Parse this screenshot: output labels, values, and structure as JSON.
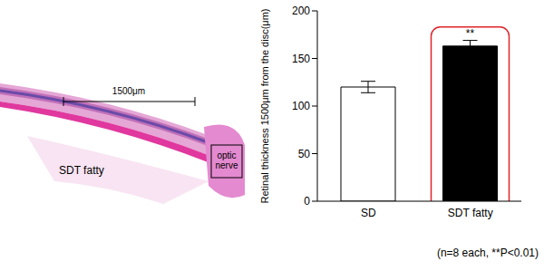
{
  "chart_data": {
    "type": "bar",
    "categories": [
      "SD",
      "SDT fatty"
    ],
    "values": [
      120,
      163
    ],
    "errors": [
      6,
      6
    ],
    "colors": [
      "#ffffff",
      "#000000"
    ],
    "y_label": "Retinal thickness 1500μm from the disc(μm)",
    "ylim": [
      0,
      200
    ],
    "yticks": [
      0,
      50,
      100,
      150,
      200
    ],
    "annotations": [
      {
        "category": "SDT fatty",
        "text": "**"
      }
    ],
    "note": "(n=8 each, **P<0.01)"
  },
  "image": {
    "scale_bar": "1500μm",
    "labels": [
      "optic nerve",
      "SDT fatty"
    ]
  }
}
